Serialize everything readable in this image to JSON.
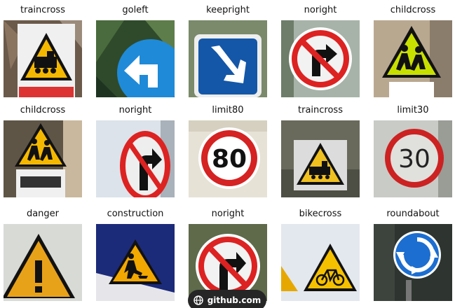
{
  "grid": {
    "tiles": [
      {
        "label": "traincross",
        "icon": "traincross-sign"
      },
      {
        "label": "goleft",
        "icon": "goleft-sign"
      },
      {
        "label": "keepright",
        "icon": "keepright-sign"
      },
      {
        "label": "noright",
        "icon": "noright-sign"
      },
      {
        "label": "childcross",
        "icon": "childcross-sign"
      },
      {
        "label": "childcross",
        "icon": "childcross-sign"
      },
      {
        "label": "noright",
        "icon": "noright-sign"
      },
      {
        "label": "limit80",
        "icon": "limit80-sign",
        "sign_text": "80"
      },
      {
        "label": "traincross",
        "icon": "traincross-sign"
      },
      {
        "label": "limit30",
        "icon": "limit30-sign",
        "sign_text": "30"
      },
      {
        "label": "danger",
        "icon": "danger-sign"
      },
      {
        "label": "construction",
        "icon": "construction-sign"
      },
      {
        "label": "noright",
        "icon": "noright-sign"
      },
      {
        "label": "bikecross",
        "icon": "bikecross-sign"
      },
      {
        "label": "roundabout",
        "icon": "roundabout-sign"
      }
    ]
  },
  "watermark": {
    "text": "github.com",
    "icon": "globe-icon"
  }
}
